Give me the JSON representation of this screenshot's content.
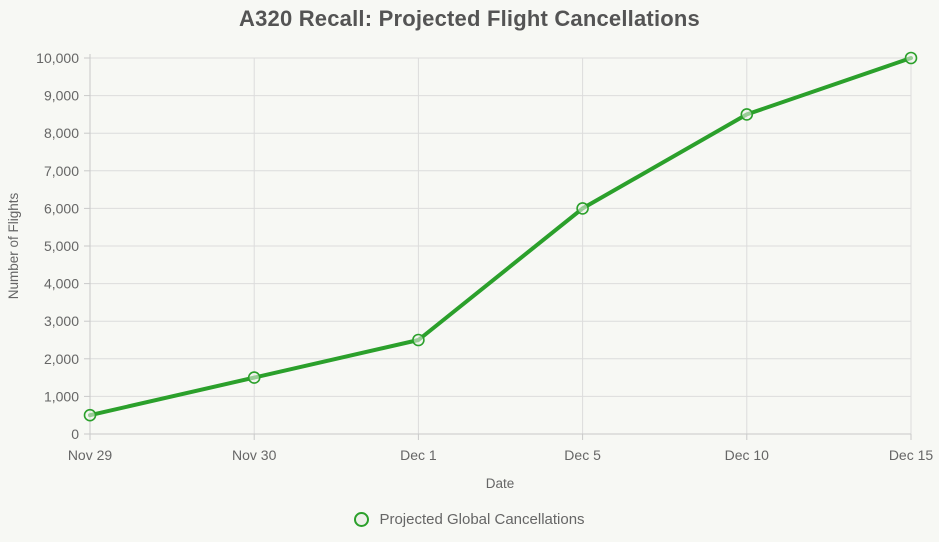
{
  "chart_data": {
    "type": "line",
    "title": "A320 Recall: Projected Flight Cancellations",
    "xlabel": "Date",
    "ylabel": "Number of Flights",
    "categories": [
      "Nov 29",
      "Nov 30",
      "Dec 1",
      "Dec 5",
      "Dec 10",
      "Dec 15"
    ],
    "series": [
      {
        "name": "Projected Global Cancellations",
        "values": [
          500,
          1500,
          2500,
          6000,
          8500,
          10000
        ]
      }
    ],
    "ylim": [
      0,
      10000
    ],
    "ytick_step": 1000,
    "ytick_labels": [
      "0",
      "1,000",
      "2,000",
      "3,000",
      "4,000",
      "5,000",
      "6,000",
      "7,000",
      "8,000",
      "9,000",
      "10,000"
    ],
    "grid": true,
    "legend_position": "bottom",
    "colors": {
      "line": "#2ba02b",
      "marker_fill": "#f2f3ef",
      "grid": "#dcdcdc",
      "axis": "#c9c9c9",
      "text": "#666666",
      "title_text": "#545454",
      "background": "#f7f8f4"
    }
  }
}
